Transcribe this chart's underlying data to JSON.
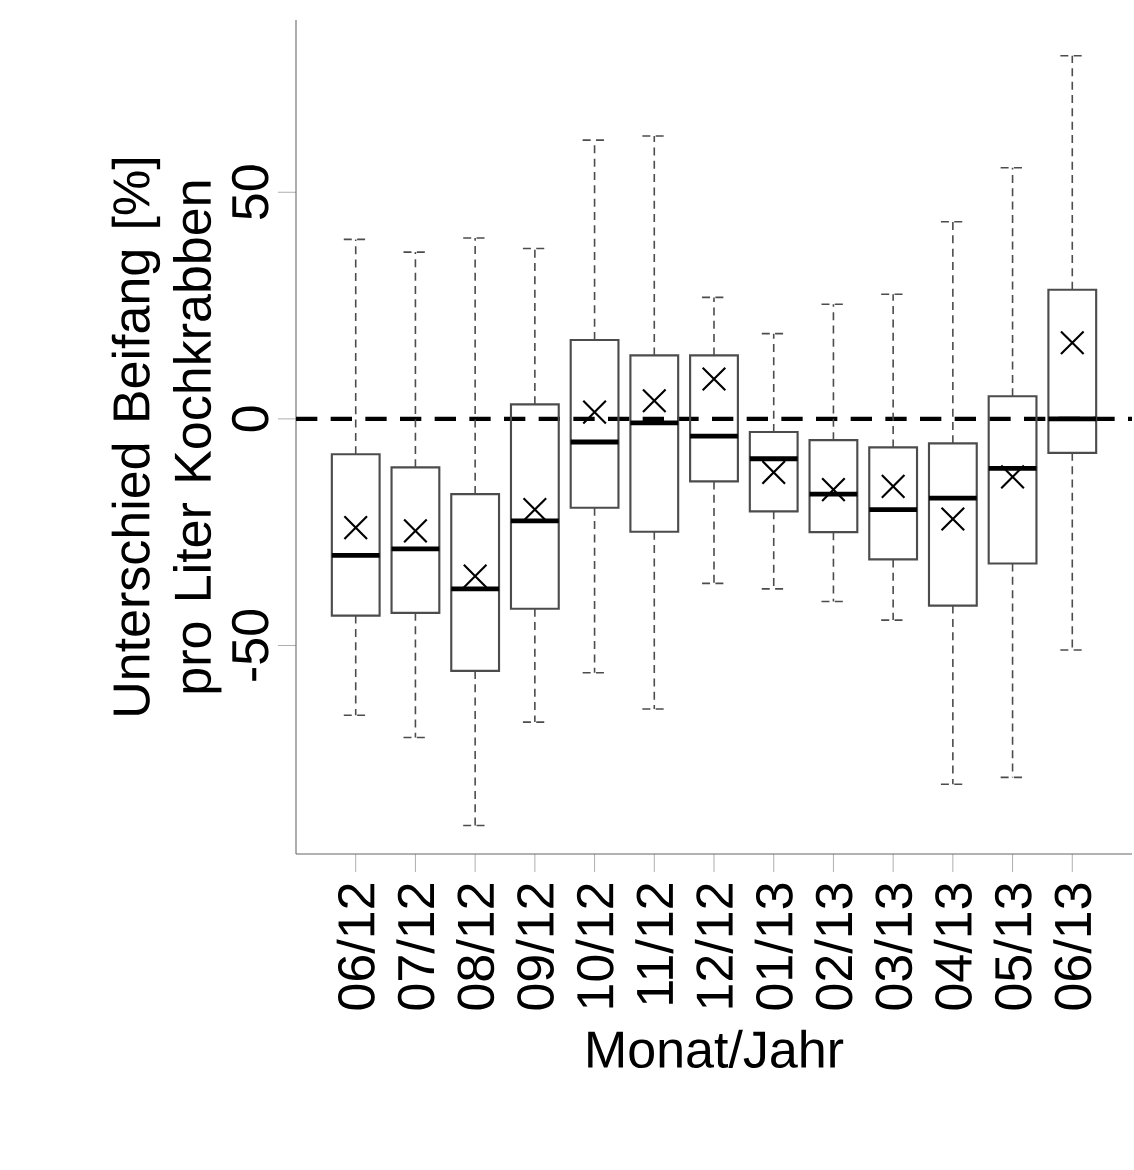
{
  "chart_data": {
    "type": "box",
    "xlabel": "Monat/Jahr",
    "ylabel": "Unterschied Beifang [%] pro Liter Kochkrabben",
    "categories": [
      "06/12",
      "07/12",
      "08/12",
      "09/12",
      "10/12",
      "11/12",
      "12/12",
      "01/13",
      "02/13",
      "03/13",
      "04/13",
      "05/13",
      "06/13"
    ],
    "boxes": [
      {
        "low": -65.4,
        "q1": -43.4,
        "median": -30.1,
        "q3": -7.8,
        "high": 39.6,
        "mean": -24
      },
      {
        "low": -70.3,
        "q1": -42.8,
        "median": -28.7,
        "q3": -10.7,
        "high": 36.8,
        "mean": -24.7
      },
      {
        "low": -89.7,
        "q1": -55.6,
        "median": -37.5,
        "q3": -16.6,
        "high": 39.9,
        "mean": -34.7
      },
      {
        "low": -66.9,
        "q1": -41.9,
        "median": -22.5,
        "q3": 3.2,
        "high": 37.6,
        "mean": -20
      },
      {
        "low": -56,
        "q1": -19.6,
        "median": -5.1,
        "q3": 17.4,
        "high": 61.5,
        "mean": 1.5
      },
      {
        "low": -64,
        "q1": -24.9,
        "median": -0.9,
        "q3": 14,
        "high": 62.4,
        "mean": 4
      },
      {
        "low": -36.3,
        "q1": -13.8,
        "median": -3.8,
        "q3": 14,
        "high": 26.8,
        "mean": 8.8
      },
      {
        "low": -37.5,
        "q1": -20.4,
        "median": -8.8,
        "q3": -2.9,
        "high": 18.8,
        "mean": -11.8
      },
      {
        "low": -40.3,
        "q1": -25,
        "median": -16.6,
        "q3": -4.7,
        "high": 25.3,
        "mean": -15.6
      },
      {
        "low": -44.4,
        "q1": -31,
        "median": -20,
        "q3": -6.3,
        "high": 27.5,
        "mean": -14.9
      },
      {
        "low": -80.6,
        "q1": -41.2,
        "median": -17.5,
        "q3": -5.4,
        "high": 43.5,
        "mean": -22.1
      },
      {
        "low": -79.1,
        "q1": -31.9,
        "median": -10.9,
        "q3": 5,
        "high": 55.4,
        "mean": -12.8
      },
      {
        "low": -51,
        "q1": -7.5,
        "median": 0,
        "q3": 28.5,
        "high": 80.1,
        "mean": 16.8
      }
    ],
    "ylim": [
      -96,
      88
    ],
    "yticks": [
      -50,
      0,
      50
    ],
    "ref_lines": [
      {
        "axis": "y",
        "value": 0,
        "line_style": "dashed",
        "color": "#000000"
      }
    ]
  }
}
